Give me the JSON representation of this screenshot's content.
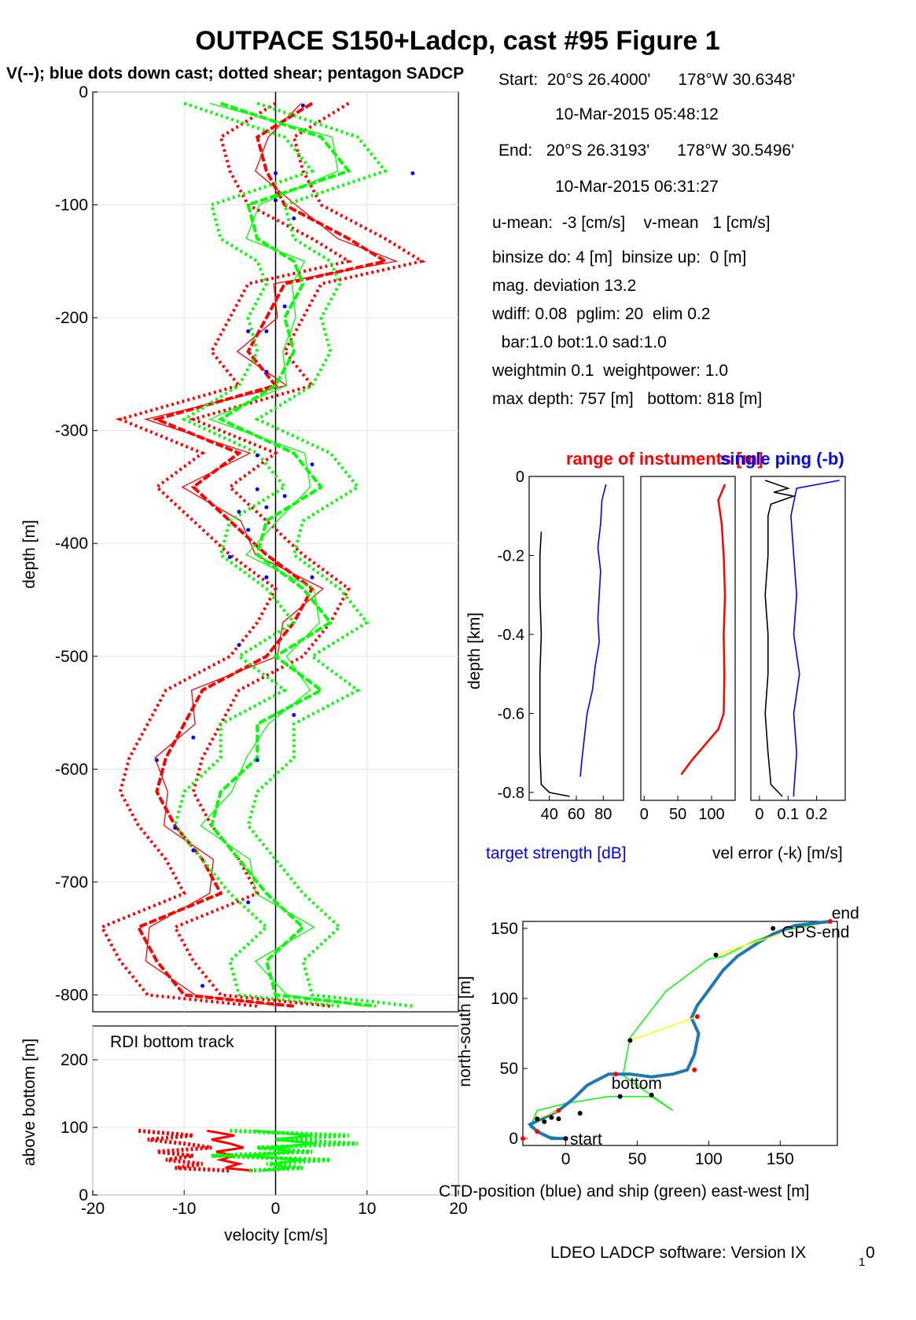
{
  "title": "OUTPACE S150+Ladcp, cast #95  Figure 1",
  "subtitle": "V(--); blue dots down cast; dotted shear; pentagon SADCP",
  "colors": {
    "u": "#ff0000",
    "v": "#00ff00",
    "blue": "#0000ff",
    "ctd": "#1f77b4",
    "yellow": "#ffff00",
    "black": "#000000"
  },
  "info": {
    "lines": [
      "Start:  20°S 26.4000'      178°W 30.6348'",
      "10-Mar-2015 05:48:12",
      "End:   20°S 26.3193'      178°W 30.5496'",
      "10-Mar-2015 06:31:27",
      "u-mean:  -3 [cm/s]    v-mean   1 [cm/s]",
      "binsize do: 4 [m]  binsize up:  0 [m]",
      "mag. deviation 13.2",
      "wdiff: 0.08  pglim: 20  elim 0.2",
      "  bar:1.0 bot:1.0 sad:1.0",
      "weightmin 0.1  weightpower: 1.0",
      "max depth: 757 [m]   bottom: 818 [m]"
    ]
  },
  "footer": "LDEO LADCP software: Version IX",
  "footer_sub": "1",
  "footer_end": "0",
  "chart_data": [
    {
      "type": "line",
      "name": "velocity-profile",
      "ylabel": "depth [m]",
      "xlim": [
        -20,
        20
      ],
      "ylim": [
        -815,
        0
      ],
      "yticks": [
        0,
        -100,
        -200,
        -300,
        -400,
        -500,
        -600,
        -700,
        -800
      ],
      "grid": true,
      "series": [
        {
          "name": "u",
          "color": "#ff0000",
          "depth": [
            -10,
            -40,
            -70,
            -100,
            -130,
            -150,
            -170,
            -200,
            -230,
            -260,
            -290,
            -320,
            -350,
            -380,
            -410,
            -440,
            -470,
            -500,
            -530,
            -560,
            -590,
            -620,
            -650,
            -680,
            -710,
            -740,
            -770,
            -800,
            -810
          ],
          "values": [
            4,
            -2,
            -1,
            1,
            8,
            12,
            1,
            -1,
            -3,
            0,
            -13,
            -4,
            -9,
            -5,
            -1,
            4,
            2,
            -1,
            -8,
            -10,
            -12,
            -13,
            -11,
            -8,
            -6,
            -15,
            -13,
            -10,
            2
          ]
        },
        {
          "name": "v",
          "color": "#00ff00",
          "depth": [
            -10,
            -40,
            -70,
            -100,
            -130,
            -150,
            -170,
            -200,
            -230,
            -260,
            -290,
            -320,
            -350,
            -380,
            -410,
            -440,
            -470,
            -500,
            -530,
            -560,
            -590,
            -620,
            -650,
            -680,
            -710,
            -740,
            -770,
            -800,
            -810
          ],
          "values": [
            -6,
            5,
            8,
            -3,
            -2,
            2,
            3,
            1,
            2,
            0,
            -6,
            2,
            5,
            -1,
            -2,
            3,
            6,
            0,
            5,
            -2,
            -2,
            -6,
            -7,
            -4,
            -1,
            3,
            -1,
            0,
            11
          ]
        }
      ],
      "downcast_dots": [
        {
          "u": 3,
          "depth": -12
        },
        {
          "u": 0,
          "depth": -72
        },
        {
          "u": 15,
          "depth": -72
        },
        {
          "u": 0,
          "depth": -96
        },
        {
          "u": 2,
          "depth": -112
        },
        {
          "u": 1,
          "depth": -190
        },
        {
          "u": -1,
          "depth": -212
        },
        {
          "u": -3,
          "depth": -212
        },
        {
          "u": -1,
          "depth": -248
        },
        {
          "u": -2,
          "depth": -322
        },
        {
          "u": 4,
          "depth": -330
        },
        {
          "u": -2,
          "depth": -352
        },
        {
          "u": 1,
          "depth": -358
        },
        {
          "u": -4,
          "depth": -372
        },
        {
          "u": -1,
          "depth": -368
        },
        {
          "u": -3,
          "depth": -388
        },
        {
          "u": -5,
          "depth": -412
        },
        {
          "u": -1,
          "depth": -430
        },
        {
          "u": 4,
          "depth": -430
        },
        {
          "u": -4,
          "depth": -490
        },
        {
          "u": 2,
          "depth": -552
        },
        {
          "u": -9,
          "depth": -572
        },
        {
          "u": -13,
          "depth": -592
        },
        {
          "u": -2,
          "depth": -592
        },
        {
          "u": -11,
          "depth": -652
        },
        {
          "u": -9,
          "depth": -672
        },
        {
          "u": -3,
          "depth": -718
        },
        {
          "u": -8,
          "depth": -792
        }
      ]
    },
    {
      "type": "line",
      "name": "bottom-track",
      "label": "RDI bottom track",
      "xlabel": "velocity [cm/s]",
      "ylabel": "above bottom [m]",
      "xlim": [
        -20,
        20
      ],
      "ylim": [
        0,
        250
      ],
      "xticks": [
        -20,
        -10,
        0,
        10,
        20
      ],
      "yticks": [
        0,
        100,
        200
      ],
      "grid": true,
      "series": [
        {
          "name": "u",
          "color": "#ff0000",
          "height": [
            95,
            88,
            82,
            76,
            70,
            64,
            58,
            52,
            46,
            40,
            36
          ],
          "values": [
            -15,
            -9,
            -14,
            -10,
            -7,
            -13,
            -9,
            -12,
            -8,
            -11,
            -5
          ]
        },
        {
          "name": "v",
          "color": "#00ff00",
          "height": [
            95,
            88,
            82,
            76,
            70,
            64,
            58,
            52,
            46,
            40,
            36
          ],
          "values": [
            -5,
            8,
            0,
            9,
            -2,
            4,
            -7,
            6,
            -1,
            3,
            -3
          ]
        }
      ]
    },
    {
      "type": "line",
      "name": "target-strength",
      "title": "range of instuments [m]",
      "title2": "single ping (-b)",
      "xlabel": "target strength [dB]",
      "ylabel": "depth [km]",
      "xlim": [
        25,
        95
      ],
      "ylim": [
        -0.82,
        0
      ],
      "xticks": [
        40,
        60,
        80
      ],
      "yticks": [
        0,
        -0.2,
        -0.4,
        -0.6,
        -0.8
      ],
      "series": [
        {
          "name": "blue",
          "color": "#0000ff",
          "depth": [
            -0.02,
            -0.06,
            -0.12,
            -0.18,
            -0.24,
            -0.3,
            -0.36,
            -0.42,
            -0.48,
            -0.54,
            -0.6,
            -0.66,
            -0.72,
            -0.76
          ],
          "values": [
            82,
            79,
            78,
            76,
            78,
            77,
            76,
            77,
            74,
            72,
            68,
            66,
            64,
            63
          ]
        },
        {
          "name": "black",
          "color": "#000000",
          "depth": [
            -0.14,
            -0.2,
            -0.3,
            -0.4,
            -0.5,
            -0.6,
            -0.7,
            -0.78,
            -0.8,
            -0.81
          ],
          "values": [
            34,
            33,
            33,
            34,
            33,
            33,
            33,
            34,
            40,
            55
          ]
        }
      ]
    },
    {
      "type": "line",
      "name": "instrument-range",
      "xlim": [
        -5,
        135
      ],
      "ylim": [
        -0.82,
        0
      ],
      "xticks": [
        0,
        50,
        100
      ],
      "series": [
        {
          "name": "range",
          "color": "#ff0000",
          "depth": [
            -0.02,
            -0.06,
            -0.12,
            -0.2,
            -0.3,
            -0.4,
            -0.5,
            -0.6,
            -0.64,
            -0.68,
            -0.72,
            -0.755
          ],
          "values": [
            120,
            110,
            115,
            118,
            120,
            118,
            119,
            118,
            110,
            90,
            70,
            55
          ]
        }
      ]
    },
    {
      "type": "line",
      "name": "vel-error",
      "xlabel": "vel error (-k) [m/s]",
      "xlim": [
        -0.03,
        0.3
      ],
      "ylim": [
        -0.82,
        0
      ],
      "xticks": [
        0,
        0.1,
        0.2
      ],
      "series": [
        {
          "name": "black",
          "color": "#000000",
          "depth": [
            -0.01,
            -0.03,
            -0.04,
            -0.05,
            -0.07,
            -0.1,
            -0.2,
            -0.3,
            -0.4,
            -0.5,
            -0.6,
            -0.7,
            -0.78,
            -0.81
          ],
          "values": [
            0.02,
            0.1,
            0.05,
            0.12,
            0.04,
            0.03,
            0.03,
            0.02,
            0.03,
            0.03,
            0.02,
            0.03,
            0.04,
            0.08
          ]
        },
        {
          "name": "blue",
          "color": "#0000ff",
          "depth": [
            -0.01,
            -0.03,
            -0.1,
            -0.2,
            -0.3,
            -0.4,
            -0.5,
            -0.6,
            -0.7,
            -0.8,
            -0.81
          ],
          "values": [
            0.28,
            0.13,
            0.11,
            0.12,
            0.13,
            0.12,
            0.14,
            0.12,
            0.13,
            0.12,
            0.12
          ]
        }
      ]
    },
    {
      "type": "line",
      "name": "position",
      "xlabel": "CTD-position (blue) and ship (green) east-west [m]",
      "ylabel": "north-south [m]",
      "xlim": [
        -30,
        190
      ],
      "ylim": [
        -5,
        155
      ],
      "xticks": [
        0,
        50,
        100,
        150
      ],
      "yticks": [
        0,
        50,
        100,
        150
      ],
      "labels": {
        "start": "start",
        "bottom": "bottom",
        "end": "end",
        "gps_end": "GPS-end"
      },
      "series": [
        {
          "name": "ctd",
          "color": "#1f77b4",
          "x": [
            0,
            -10,
            -20,
            -25,
            -15,
            -5,
            5,
            15,
            30,
            45,
            60,
            75,
            85,
            90,
            93,
            88,
            92,
            100,
            110,
            120,
            135,
            145,
            160,
            185
          ],
          "y": [
            0,
            0,
            5,
            10,
            15,
            20,
            28,
            38,
            46,
            46,
            44,
            46,
            49,
            60,
            75,
            86,
            95,
            106,
            120,
            130,
            140,
            146,
            152,
            155
          ]
        },
        {
          "name": "ship",
          "color": "#00ff00",
          "x": [
            0,
            -15,
            -25,
            -20,
            0,
            30,
            60,
            75,
            40,
            45,
            70,
            100,
            110,
            130,
            150,
            185
          ],
          "y": [
            0,
            2,
            8,
            20,
            25,
            30,
            30,
            20,
            45,
            72,
            105,
            128,
            130,
            140,
            148,
            155
          ]
        }
      ],
      "markers": {
        "black": [
          [
            0,
            0
          ],
          [
            -20,
            14
          ],
          [
            -15,
            12
          ],
          [
            -10,
            15
          ],
          [
            -5,
            14
          ],
          [
            10,
            18
          ],
          [
            38,
            30
          ],
          [
            60,
            31
          ],
          [
            45,
            70
          ],
          [
            105,
            131
          ],
          [
            145,
            150
          ]
        ],
        "red": [
          [
            -30,
            0
          ],
          [
            -20,
            5
          ],
          [
            -5,
            20
          ],
          [
            35,
            46
          ],
          [
            90,
            49
          ],
          [
            92,
            87
          ],
          [
            185,
            155
          ]
        ]
      }
    }
  ]
}
